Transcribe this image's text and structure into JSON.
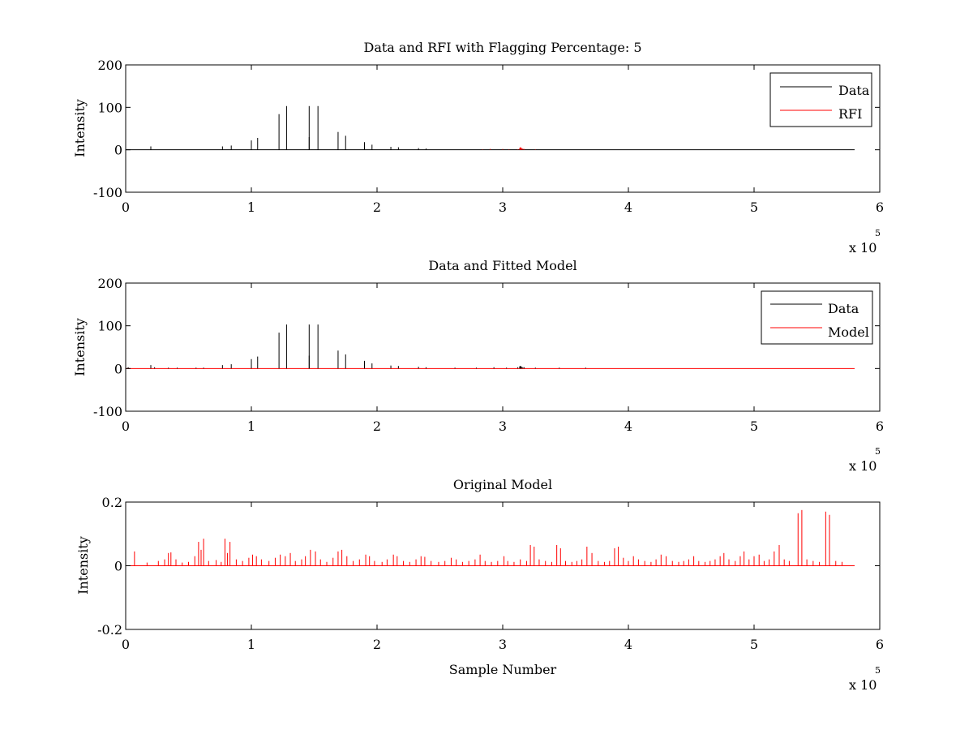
{
  "figure": {
    "background": "#ffffff",
    "axis_color": "#000000"
  },
  "chart_data": [
    {
      "type": "line",
      "title": "Data and RFI with Flagging Percentage: 5",
      "xlabel": "",
      "ylabel": "Intensity",
      "xlim": [
        0,
        600000
      ],
      "ylim": [
        -100,
        200
      ],
      "xticks": [
        0,
        100000,
        200000,
        300000,
        400000,
        500000,
        600000
      ],
      "xtick_labels": [
        "0",
        "1",
        "2",
        "3",
        "4",
        "5",
        "6"
      ],
      "yticks": [
        -100,
        0,
        100,
        200
      ],
      "ytick_labels": [
        "-100",
        "0",
        "100",
        "200"
      ],
      "x_multiplier": {
        "base": "x 10",
        "exponent": "5"
      },
      "grid": false,
      "legend_position": "top-right",
      "baseline": {
        "x_start": 0,
        "x_end": 580000,
        "color": "#000000"
      },
      "series": [
        {
          "name": "Data",
          "color": "#000000",
          "spikes": [
            [
              20000,
              8
            ],
            [
              77000,
              8
            ],
            [
              84000,
              10
            ],
            [
              100000,
              22
            ],
            [
              105000,
              28
            ],
            [
              122000,
              84
            ],
            [
              128000,
              103
            ],
            [
              146000,
              30
            ],
            [
              146000,
              103
            ],
            [
              153000,
              103
            ],
            [
              169000,
              42
            ],
            [
              175000,
              33
            ],
            [
              190000,
              18
            ],
            [
              196000,
              12
            ],
            [
              211000,
              7
            ],
            [
              217000,
              6
            ],
            [
              233000,
              4
            ],
            [
              239000,
              3
            ]
          ]
        },
        {
          "name": "RFI",
          "color": "#ff0000",
          "spikes": [
            [
              284000,
              1
            ],
            [
              290000,
              2
            ],
            [
              300000,
              2
            ],
            [
              305000,
              1
            ],
            [
              312000,
              1
            ],
            [
              313500,
              4
            ],
            [
              314000,
              6
            ],
            [
              314500,
              5
            ],
            [
              315000,
              4
            ],
            [
              316000,
              3
            ],
            [
              317000,
              2
            ],
            [
              326000,
              1
            ]
          ]
        }
      ]
    },
    {
      "type": "line",
      "title": "Data and Fitted Model",
      "xlabel": "",
      "ylabel": "Intensity",
      "xlim": [
        0,
        600000
      ],
      "ylim": [
        -100,
        200
      ],
      "xticks": [
        0,
        100000,
        200000,
        300000,
        400000,
        500000,
        600000
      ],
      "xtick_labels": [
        "0",
        "1",
        "2",
        "3",
        "4",
        "5",
        "6"
      ],
      "yticks": [
        -100,
        0,
        100,
        200
      ],
      "ytick_labels": [
        "-100",
        "0",
        "100",
        "200"
      ],
      "x_multiplier": {
        "base": "x 10",
        "exponent": "5"
      },
      "grid": false,
      "legend_position": "top-right",
      "baseline": {
        "x_start": 0,
        "x_end": 580000,
        "color": "#ff0000"
      },
      "series": [
        {
          "name": "Data",
          "color": "#000000",
          "spikes": [
            [
              2000,
              3
            ],
            [
              20000,
              8
            ],
            [
              23000,
              3
            ],
            [
              34000,
              2
            ],
            [
              41000,
              2
            ],
            [
              56000,
              2
            ],
            [
              62000,
              2
            ],
            [
              77000,
              8
            ],
            [
              84000,
              10
            ],
            [
              100000,
              22
            ],
            [
              105000,
              28
            ],
            [
              122000,
              84
            ],
            [
              128000,
              103
            ],
            [
              146000,
              30
            ],
            [
              146000,
              103
            ],
            [
              153000,
              103
            ],
            [
              169000,
              42
            ],
            [
              175000,
              33
            ],
            [
              190000,
              18
            ],
            [
              196000,
              12
            ],
            [
              211000,
              7
            ],
            [
              217000,
              6
            ],
            [
              233000,
              4
            ],
            [
              239000,
              3
            ],
            [
              262000,
              2
            ],
            [
              279000,
              2
            ],
            [
              293000,
              3
            ],
            [
              303000,
              2
            ],
            [
              312000,
              3
            ],
            [
              313500,
              5
            ],
            [
              314000,
              6
            ],
            [
              314500,
              5
            ],
            [
              315000,
              4
            ],
            [
              316000,
              3
            ],
            [
              317000,
              3
            ],
            [
              326000,
              2
            ],
            [
              345000,
              2
            ],
            [
              366000,
              2
            ]
          ]
        },
        {
          "name": "Model",
          "color": "#ff0000",
          "spikes": []
        }
      ]
    },
    {
      "type": "line",
      "title": "Original Model",
      "xlabel": "Sample Number",
      "ylabel": "Intensity",
      "xlim": [
        0,
        600000
      ],
      "ylim": [
        -0.2,
        0.2
      ],
      "xticks": [
        0,
        100000,
        200000,
        300000,
        400000,
        500000,
        600000
      ],
      "xtick_labels": [
        "0",
        "1",
        "2",
        "3",
        "4",
        "5",
        "6"
      ],
      "yticks": [
        -0.2,
        0,
        0.2
      ],
      "ytick_labels": [
        "-0.2",
        "0",
        "0.2"
      ],
      "x_multiplier": {
        "base": "x 10",
        "exponent": "5"
      },
      "grid": false,
      "legend_position": "none",
      "baseline": {
        "x_start": 0,
        "x_end": 580000,
        "color": "#ff0000"
      },
      "series": [
        {
          "color": "#ff0000",
          "spikes": [
            [
              7000,
              0.045
            ],
            [
              17000,
              0.01
            ],
            [
              26000,
              0.015
            ],
            [
              31000,
              0.02
            ],
            [
              34000,
              0.04
            ],
            [
              36000,
              0.042
            ],
            [
              40000,
              0.02
            ],
            [
              45000,
              0.01
            ],
            [
              50000,
              0.012
            ],
            [
              55000,
              0.03
            ],
            [
              58000,
              0.075
            ],
            [
              60000,
              0.05
            ],
            [
              62000,
              0.085
            ],
            [
              66000,
              0.015
            ],
            [
              72000,
              0.018
            ],
            [
              76000,
              0.012
            ],
            [
              79000,
              0.085
            ],
            [
              81000,
              0.04
            ],
            [
              83000,
              0.075
            ],
            [
              88000,
              0.02
            ],
            [
              93000,
              0.015
            ],
            [
              98000,
              0.025
            ],
            [
              101000,
              0.035
            ],
            [
              104000,
              0.03
            ],
            [
              108000,
              0.02
            ],
            [
              114000,
              0.015
            ],
            [
              119000,
              0.025
            ],
            [
              123000,
              0.035
            ],
            [
              127000,
              0.03
            ],
            [
              131000,
              0.04
            ],
            [
              135000,
              0.015
            ],
            [
              140000,
              0.02
            ],
            [
              143000,
              0.03
            ],
            [
              147000,
              0.05
            ],
            [
              151000,
              0.045
            ],
            [
              155000,
              0.02
            ],
            [
              160000,
              0.012
            ],
            [
              165000,
              0.025
            ],
            [
              169000,
              0.045
            ],
            [
              172000,
              0.05
            ],
            [
              176000,
              0.03
            ],
            [
              181000,
              0.015
            ],
            [
              186000,
              0.02
            ],
            [
              191000,
              0.035
            ],
            [
              194000,
              0.03
            ],
            [
              198000,
              0.015
            ],
            [
              204000,
              0.012
            ],
            [
              208000,
              0.02
            ],
            [
              213000,
              0.035
            ],
            [
              216000,
              0.03
            ],
            [
              221000,
              0.015
            ],
            [
              226000,
              0.012
            ],
            [
              231000,
              0.02
            ],
            [
              235000,
              0.03
            ],
            [
              238000,
              0.028
            ],
            [
              243000,
              0.015
            ],
            [
              249000,
              0.012
            ],
            [
              254000,
              0.015
            ],
            [
              259000,
              0.025
            ],
            [
              263000,
              0.02
            ],
            [
              268000,
              0.012
            ],
            [
              273000,
              0.015
            ],
            [
              278000,
              0.02
            ],
            [
              282000,
              0.035
            ],
            [
              286000,
              0.015
            ],
            [
              291000,
              0.012
            ],
            [
              296000,
              0.015
            ],
            [
              301000,
              0.03
            ],
            [
              304000,
              0.015
            ],
            [
              309000,
              0.012
            ],
            [
              314000,
              0.02
            ],
            [
              319000,
              0.015
            ],
            [
              322000,
              0.065
            ],
            [
              325000,
              0.06
            ],
            [
              329000,
              0.02
            ],
            [
              334000,
              0.015
            ],
            [
              339000,
              0.012
            ],
            [
              343000,
              0.065
            ],
            [
              346000,
              0.055
            ],
            [
              350000,
              0.015
            ],
            [
              355000,
              0.012
            ],
            [
              359000,
              0.015
            ],
            [
              363000,
              0.02
            ],
            [
              367000,
              0.06
            ],
            [
              371000,
              0.04
            ],
            [
              376000,
              0.015
            ],
            [
              381000,
              0.012
            ],
            [
              385000,
              0.015
            ],
            [
              389000,
              0.055
            ],
            [
              392000,
              0.06
            ],
            [
              396000,
              0.025
            ],
            [
              400000,
              0.015
            ],
            [
              404000,
              0.03
            ],
            [
              408000,
              0.02
            ],
            [
              413000,
              0.015
            ],
            [
              418000,
              0.012
            ],
            [
              422000,
              0.02
            ],
            [
              426000,
              0.035
            ],
            [
              430000,
              0.03
            ],
            [
              435000,
              0.015
            ],
            [
              440000,
              0.012
            ],
            [
              444000,
              0.015
            ],
            [
              448000,
              0.02
            ],
            [
              452000,
              0.03
            ],
            [
              456000,
              0.015
            ],
            [
              461000,
              0.012
            ],
            [
              465000,
              0.015
            ],
            [
              469000,
              0.02
            ],
            [
              473000,
              0.03
            ],
            [
              476000,
              0.04
            ],
            [
              480000,
              0.02
            ],
            [
              485000,
              0.015
            ],
            [
              489000,
              0.03
            ],
            [
              492000,
              0.045
            ],
            [
              496000,
              0.02
            ],
            [
              500000,
              0.03
            ],
            [
              504000,
              0.035
            ],
            [
              508000,
              0.015
            ],
            [
              512000,
              0.02
            ],
            [
              516000,
              0.045
            ],
            [
              520000,
              0.065
            ],
            [
              524000,
              0.02
            ],
            [
              528000,
              0.015
            ],
            [
              535000,
              0.165
            ],
            [
              538000,
              0.175
            ],
            [
              542000,
              0.02
            ],
            [
              547000,
              0.015
            ],
            [
              552000,
              0.012
            ],
            [
              557000,
              0.17
            ],
            [
              560000,
              0.16
            ],
            [
              565000,
              0.015
            ],
            [
              570000,
              0.012
            ]
          ]
        }
      ]
    }
  ]
}
